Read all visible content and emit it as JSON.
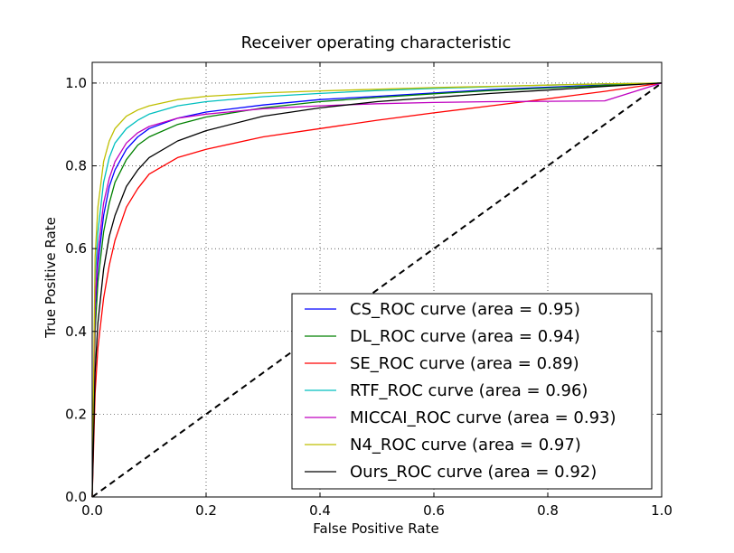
{
  "chart_data": {
    "type": "line",
    "title": "Receiver operating characteristic",
    "xlabel": "False Positive Rate",
    "ylabel": "True Positive Rate",
    "xlim": [
      0.0,
      1.0
    ],
    "ylim": [
      0.0,
      1.05
    ],
    "xticks": [
      "0.0",
      "0.2",
      "0.4",
      "0.6",
      "0.8",
      "1.0"
    ],
    "yticks": [
      "0.0",
      "0.2",
      "0.4",
      "0.6",
      "0.8",
      "1.0"
    ],
    "grid": true,
    "legend_position": "lower-right",
    "series": [
      {
        "name": "CS_ROC curve (area = 0.95)",
        "color": "#0000ff",
        "x": [
          0,
          0.005,
          0.01,
          0.02,
          0.03,
          0.04,
          0.06,
          0.08,
          0.1,
          0.15,
          0.2,
          0.3,
          0.4,
          0.5,
          0.6,
          0.7,
          0.8,
          0.9,
          1.0
        ],
        "y": [
          0,
          0.45,
          0.56,
          0.68,
          0.75,
          0.79,
          0.84,
          0.87,
          0.89,
          0.915,
          0.93,
          0.947,
          0.96,
          0.968,
          0.976,
          0.984,
          0.99,
          0.995,
          1.0
        ]
      },
      {
        "name": "DL_ROC curve (area = 0.94)",
        "color": "#008000",
        "x": [
          0,
          0.005,
          0.01,
          0.02,
          0.03,
          0.04,
          0.06,
          0.08,
          0.1,
          0.15,
          0.2,
          0.3,
          0.4,
          0.5,
          0.6,
          0.7,
          0.8,
          0.9,
          1.0
        ],
        "y": [
          0,
          0.4,
          0.52,
          0.64,
          0.71,
          0.76,
          0.815,
          0.85,
          0.87,
          0.9,
          0.918,
          0.94,
          0.955,
          0.965,
          0.974,
          0.982,
          0.988,
          0.994,
          1.0
        ]
      },
      {
        "name": "SE_ROC curve (area = 0.89)",
        "color": "#ff0000",
        "x": [
          0,
          0.005,
          0.01,
          0.02,
          0.03,
          0.04,
          0.06,
          0.08,
          0.1,
          0.15,
          0.2,
          0.3,
          0.4,
          0.5,
          0.6,
          0.7,
          0.8,
          0.9,
          1.0
        ],
        "y": [
          0,
          0.25,
          0.36,
          0.48,
          0.56,
          0.62,
          0.7,
          0.745,
          0.78,
          0.82,
          0.84,
          0.87,
          0.89,
          0.91,
          0.928,
          0.945,
          0.962,
          0.98,
          1.0
        ]
      },
      {
        "name": "RTF_ROC curve (area = 0.96)",
        "color": "#00bfbf",
        "x": [
          0,
          0.005,
          0.01,
          0.02,
          0.03,
          0.04,
          0.06,
          0.08,
          0.1,
          0.15,
          0.2,
          0.3,
          0.4,
          0.5,
          0.6,
          0.7,
          0.8,
          0.9,
          1.0
        ],
        "y": [
          0,
          0.52,
          0.64,
          0.76,
          0.82,
          0.855,
          0.89,
          0.91,
          0.925,
          0.945,
          0.955,
          0.967,
          0.975,
          0.982,
          0.987,
          0.991,
          0.995,
          0.998,
          1.0
        ]
      },
      {
        "name": "MICCAI_ROC curve (area = 0.93)",
        "color": "#bf00bf",
        "x": [
          0,
          0.005,
          0.01,
          0.02,
          0.03,
          0.04,
          0.06,
          0.08,
          0.1,
          0.15,
          0.2,
          0.3,
          0.4,
          0.5,
          0.6,
          0.7,
          0.8,
          0.9,
          1.0
        ],
        "y": [
          0,
          0.47,
          0.59,
          0.71,
          0.77,
          0.81,
          0.855,
          0.88,
          0.895,
          0.915,
          0.925,
          0.938,
          0.945,
          0.95,
          0.953,
          0.955,
          0.956,
          0.957,
          1.0
        ]
      },
      {
        "name": "N4_ROC curve (area = 0.97)",
        "color": "#bfbf00",
        "x": [
          0,
          0.005,
          0.01,
          0.02,
          0.03,
          0.04,
          0.06,
          0.08,
          0.1,
          0.15,
          0.2,
          0.3,
          0.4,
          0.5,
          0.6,
          0.7,
          0.8,
          0.9,
          1.0
        ],
        "y": [
          0,
          0.58,
          0.7,
          0.81,
          0.86,
          0.89,
          0.92,
          0.935,
          0.945,
          0.96,
          0.968,
          0.976,
          0.981,
          0.985,
          0.989,
          0.992,
          0.995,
          0.998,
          1.0
        ]
      },
      {
        "name": "Ours_ROC curve (area = 0.92)",
        "color": "#000000",
        "x": [
          0,
          0.005,
          0.01,
          0.02,
          0.03,
          0.04,
          0.06,
          0.08,
          0.1,
          0.15,
          0.2,
          0.3,
          0.4,
          0.5,
          0.6,
          0.7,
          0.8,
          0.9,
          1.0
        ],
        "y": [
          0,
          0.3,
          0.42,
          0.55,
          0.63,
          0.68,
          0.75,
          0.79,
          0.82,
          0.86,
          0.885,
          0.92,
          0.94,
          0.955,
          0.965,
          0.975,
          0.983,
          0.992,
          1.0
        ]
      }
    ],
    "reference_line": {
      "x": [
        0,
        1
      ],
      "y": [
        0,
        1
      ],
      "color": "#000000",
      "style": "dashed"
    }
  }
}
